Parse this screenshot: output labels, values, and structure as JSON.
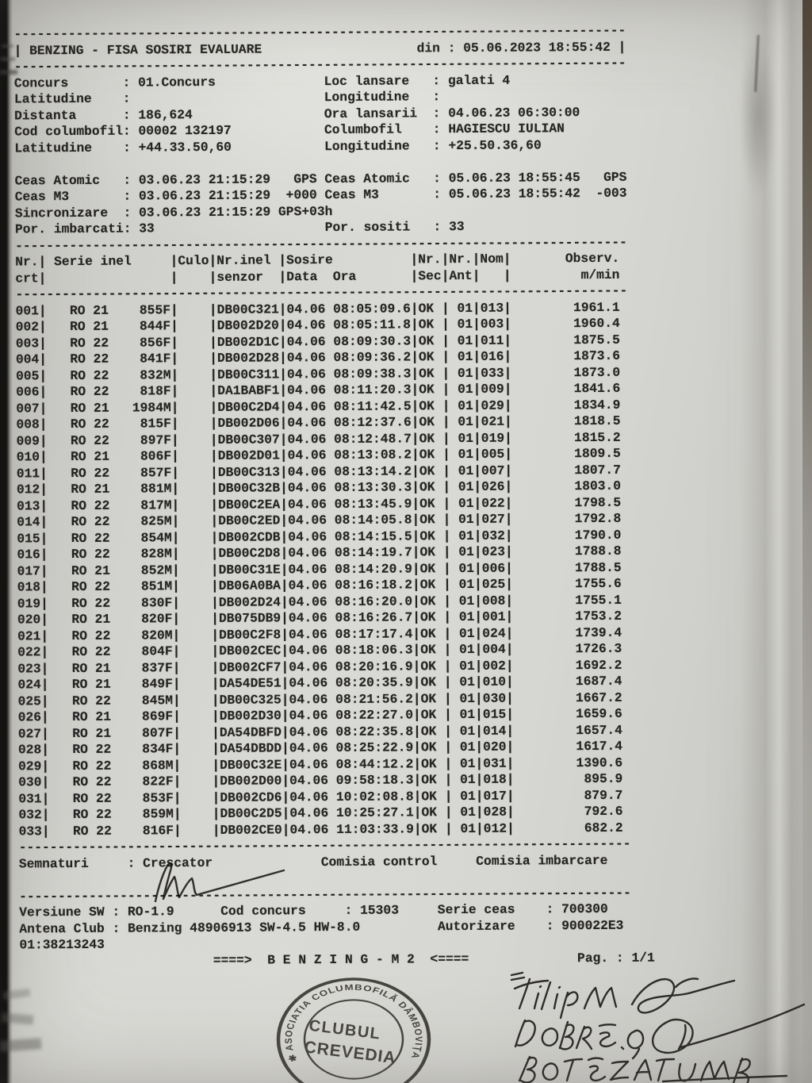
{
  "page": {
    "paper_color": "#d6d6d2",
    "ink_color": "#2b2a28",
    "stamp_ink": "#36342e",
    "pen_ink": "#23211f",
    "divider_char": "-"
  },
  "masthead": {
    "title": "BENZING - FISA SOSIRI EVALUARE",
    "date_label": "din",
    "date_value": "05.06.2023 18:55:42"
  },
  "info": {
    "left": [
      {
        "label": "Concurs",
        "value": "01.Concurs"
      },
      {
        "label": "Latitudine",
        "value": ""
      },
      {
        "label": "Distanta",
        "value": "186,624"
      },
      {
        "label": "Cod columbofil",
        "value": "00002 132197"
      },
      {
        "label": "Latitudine",
        "value": "+44.33.50,60"
      }
    ],
    "right": [
      {
        "label": "Loc lansare",
        "value": "galati 4"
      },
      {
        "label": "Longitudine",
        "value": ""
      },
      {
        "label": "Ora lansarii",
        "value": "04.06.23 06:30:00"
      },
      {
        "label": "Columbofil",
        "value": "HAGIESCU IULIAN"
      },
      {
        "label": "Longitudine",
        "value": "+25.50.36,60"
      }
    ]
  },
  "clocks": [
    {
      "left": {
        "label": "Ceas Atomic",
        "value": "03.06.23 21:15:29",
        "suffix": "GPS"
      },
      "right": {
        "label": "Ceas Atomic",
        "value": "05.06.23 18:55:45",
        "suffix": "GPS"
      }
    },
    {
      "left": {
        "label": "Ceas M3",
        "value": "03.06.23 21:15:29",
        "suffix": "+000"
      },
      "right": {
        "label": "Ceas M3",
        "value": "05.06.23 18:55:42",
        "suffix": "-003"
      }
    },
    {
      "left": {
        "label": "Sincronizare",
        "value": "03.06.23 21:15:29",
        "suffix": "GPS+03h"
      },
      "right": null
    },
    {
      "left": {
        "label": "Por. imbarcati",
        "value": "33",
        "suffix": ""
      },
      "right": {
        "label": "Por. sositi",
        "value": "33",
        "suffix": ""
      }
    }
  ],
  "table": {
    "headers": {
      "nr": [
        "Nr.",
        "crt"
      ],
      "serie": [
        "Serie inel",
        ""
      ],
      "culo": [
        "Culo",
        ""
      ],
      "senzor": [
        "Nr.inel",
        "senzor"
      ],
      "sosire": [
        "Sosire",
        "Data  Ora"
      ],
      "sec": [
        "Nr.",
        "Sec"
      ],
      "ant": [
        "Nr.",
        "Ant"
      ],
      "nom": [
        "Nom",
        ""
      ],
      "observ": [
        "Observ.",
        "m/min"
      ]
    },
    "rows": [
      [
        "001",
        "RO 21",
        "855F",
        "DB00C321",
        "04.06",
        "08:05:09.6",
        "OK",
        "01",
        "013",
        "1961.1"
      ],
      [
        "002",
        "RO 21",
        "844F",
        "DB002D20",
        "04.06",
        "08:05:11.8",
        "OK",
        "01",
        "003",
        "1960.4"
      ],
      [
        "003",
        "RO 22",
        "856F",
        "DB002D1C",
        "04.06",
        "08:09:30.3",
        "OK",
        "01",
        "011",
        "1875.5"
      ],
      [
        "004",
        "RO 22",
        "841F",
        "DB002D28",
        "04.06",
        "08:09:36.2",
        "OK",
        "01",
        "016",
        "1873.6"
      ],
      [
        "005",
        "RO 22",
        "832M",
        "DB00C311",
        "04.06",
        "08:09:38.3",
        "OK",
        "01",
        "033",
        "1873.0"
      ],
      [
        "006",
        "RO 22",
        "818F",
        "DA1BABF1",
        "04.06",
        "08:11:20.3",
        "OK",
        "01",
        "009",
        "1841.6"
      ],
      [
        "007",
        "RO 21",
        "1984M",
        "DB00C2D4",
        "04.06",
        "08:11:42.5",
        "OK",
        "01",
        "029",
        "1834.9"
      ],
      [
        "008",
        "RO 22",
        "815F",
        "DB002D06",
        "04.06",
        "08:12:37.6",
        "OK",
        "01",
        "021",
        "1818.5"
      ],
      [
        "009",
        "RO 22",
        "897F",
        "DB00C307",
        "04.06",
        "08:12:48.7",
        "OK",
        "01",
        "019",
        "1815.2"
      ],
      [
        "010",
        "RO 21",
        "806F",
        "DB002D01",
        "04.06",
        "08:13:08.2",
        "OK",
        "01",
        "005",
        "1809.5"
      ],
      [
        "011",
        "RO 22",
        "857F",
        "DB00C313",
        "04.06",
        "08:13:14.2",
        "OK",
        "01",
        "007",
        "1807.7"
      ],
      [
        "012",
        "RO 21",
        "881M",
        "DB00C32B",
        "04.06",
        "08:13:30.3",
        "OK",
        "01",
        "026",
        "1803.0"
      ],
      [
        "013",
        "RO 22",
        "817M",
        "DB00C2EA",
        "04.06",
        "08:13:45.9",
        "OK",
        "01",
        "022",
        "1798.5"
      ],
      [
        "014",
        "RO 22",
        "825M",
        "DB00C2ED",
        "04.06",
        "08:14:05.8",
        "OK",
        "01",
        "027",
        "1792.8"
      ],
      [
        "015",
        "RO 22",
        "854M",
        "DB002CDB",
        "04.06",
        "08:14:15.5",
        "OK",
        "01",
        "032",
        "1790.0"
      ],
      [
        "016",
        "RO 22",
        "828M",
        "DB00C2D8",
        "04.06",
        "08:14:19.7",
        "OK",
        "01",
        "023",
        "1788.8"
      ],
      [
        "017",
        "RO 21",
        "852M",
        "DB00C31E",
        "04.06",
        "08:14:20.9",
        "OK",
        "01",
        "006",
        "1788.5"
      ],
      [
        "018",
        "RO 22",
        "851M",
        "DB06A0BA",
        "04.06",
        "08:16:18.2",
        "OK",
        "01",
        "025",
        "1755.6"
      ],
      [
        "019",
        "RO 22",
        "830F",
        "DB002D24",
        "04.06",
        "08:16:20.0",
        "OK",
        "01",
        "008",
        "1755.1"
      ],
      [
        "020",
        "RO 21",
        "820F",
        "DB075DB9",
        "04.06",
        "08:16:26.7",
        "OK",
        "01",
        "001",
        "1753.2"
      ],
      [
        "021",
        "RO 22",
        "820M",
        "DB00C2F8",
        "04.06",
        "08:17:17.4",
        "OK",
        "01",
        "024",
        "1739.4"
      ],
      [
        "022",
        "RO 22",
        "804F",
        "DB002CEC",
        "04.06",
        "08:18:06.3",
        "OK",
        "01",
        "004",
        "1726.3"
      ],
      [
        "023",
        "RO 21",
        "837F",
        "DB002CF7",
        "04.06",
        "08:20:16.9",
        "OK",
        "01",
        "002",
        "1692.2"
      ],
      [
        "024",
        "RO 21",
        "849F",
        "DA54DE51",
        "04.06",
        "08:20:35.9",
        "OK",
        "01",
        "010",
        "1687.4"
      ],
      [
        "025",
        "RO 22",
        "845M",
        "DB00C325",
        "04.06",
        "08:21:56.2",
        "OK",
        "01",
        "030",
        "1667.2"
      ],
      [
        "026",
        "RO 21",
        "869F",
        "DB002D30",
        "04.06",
        "08:22:27.0",
        "OK",
        "01",
        "015",
        "1659.6"
      ],
      [
        "027",
        "RO 21",
        "807F",
        "DA54DBFD",
        "04.06",
        "08:22:35.8",
        "OK",
        "01",
        "014",
        "1657.4"
      ],
      [
        "028",
        "RO 22",
        "834F",
        "DA54DBDD",
        "04.06",
        "08:25:22.9",
        "OK",
        "01",
        "020",
        "1617.4"
      ],
      [
        "029",
        "RO 22",
        "868M",
        "DB00C32E",
        "04.06",
        "08:44:12.2",
        "OK",
        "01",
        "031",
        "1390.6"
      ],
      [
        "030",
        "RO 22",
        "822F",
        "DB002D00",
        "04.06",
        "09:58:18.3",
        "OK",
        "01",
        "018",
        "895.9"
      ],
      [
        "031",
        "RO 22",
        "853F",
        "DB002CD6",
        "04.06",
        "10:02:08.8",
        "OK",
        "01",
        "017",
        "879.7"
      ],
      [
        "032",
        "RO 22",
        "859M",
        "DB00C2D5",
        "04.06",
        "10:25:27.1",
        "OK",
        "01",
        "028",
        "792.6"
      ],
      [
        "033",
        "RO 22",
        "816F",
        "DB002CE0",
        "04.06",
        "11:03:33.9",
        "OK",
        "01",
        "012",
        "682.2"
      ]
    ]
  },
  "signatures": {
    "label": "Semnaturi",
    "roles": [
      "Crescator",
      "Comisia control",
      "Comisia imbarcare"
    ]
  },
  "footer": {
    "versiune_label": "Versiune SW",
    "versiune": "RO-1.9",
    "cod_concurs_label": "Cod concurs",
    "cod_concurs": "15303",
    "serie_ceas_label": "Serie ceas",
    "serie_ceas": "700300",
    "antena_label": "Antena Club",
    "antena": "Benzing 48906913 SW-4.5 HW-8.0",
    "autorizare_label": "Autorizare",
    "autorizare": "900022E3",
    "antena_id": "01:38213243",
    "arrow_left": "====>",
    "arrow_right": "<====",
    "banner": "B E N Z I N G - M 2",
    "pag_label": "Pag. :",
    "pag_value": "1/1"
  },
  "stamp": {
    "ring_text": "✱ ASOCIATIA COLUMBOFILĂ DÂMBOVIŢA F.N.C.P.R.",
    "line1": "CLUBUL",
    "line2": "CREVEDIA"
  },
  "handwriting": {
    "signature_of": "Crescator",
    "names": [
      "FILIP M",
      "DOBRE. O.",
      "BOTEZATUM B"
    ]
  }
}
